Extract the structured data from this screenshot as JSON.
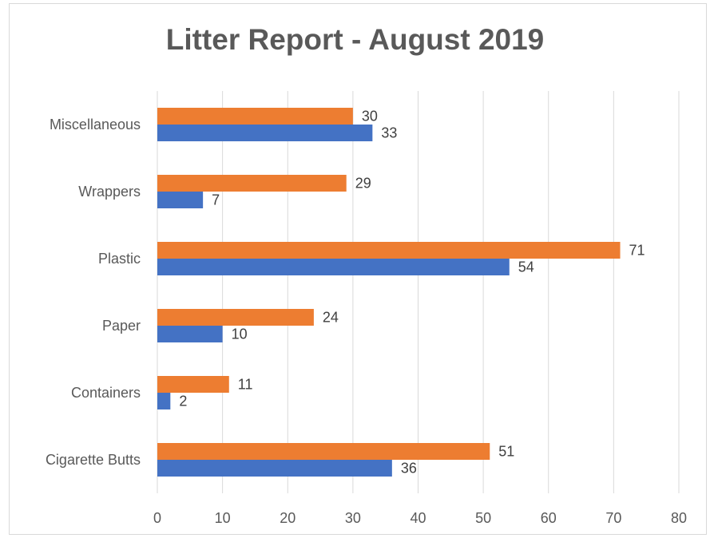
{
  "chart_data": {
    "type": "bar",
    "orientation": "horizontal",
    "title": "Litter Report - August 2019",
    "categories": [
      "Cigarette Butts",
      "Containers",
      "Paper",
      "Plastic",
      "Wrappers",
      "Miscellaneous"
    ],
    "series": [
      {
        "color": "#4472c4",
        "values": [
          36,
          2,
          10,
          54,
          7,
          33
        ]
      },
      {
        "color": "#ed7d31",
        "values": [
          51,
          11,
          24,
          71,
          29,
          30
        ]
      }
    ],
    "xlim": [
      0,
      80
    ],
    "xticks": [
      "0",
      "10",
      "20",
      "30",
      "40",
      "50",
      "60",
      "70",
      "80"
    ],
    "grid": true,
    "legend": "none",
    "data_labels": true
  }
}
